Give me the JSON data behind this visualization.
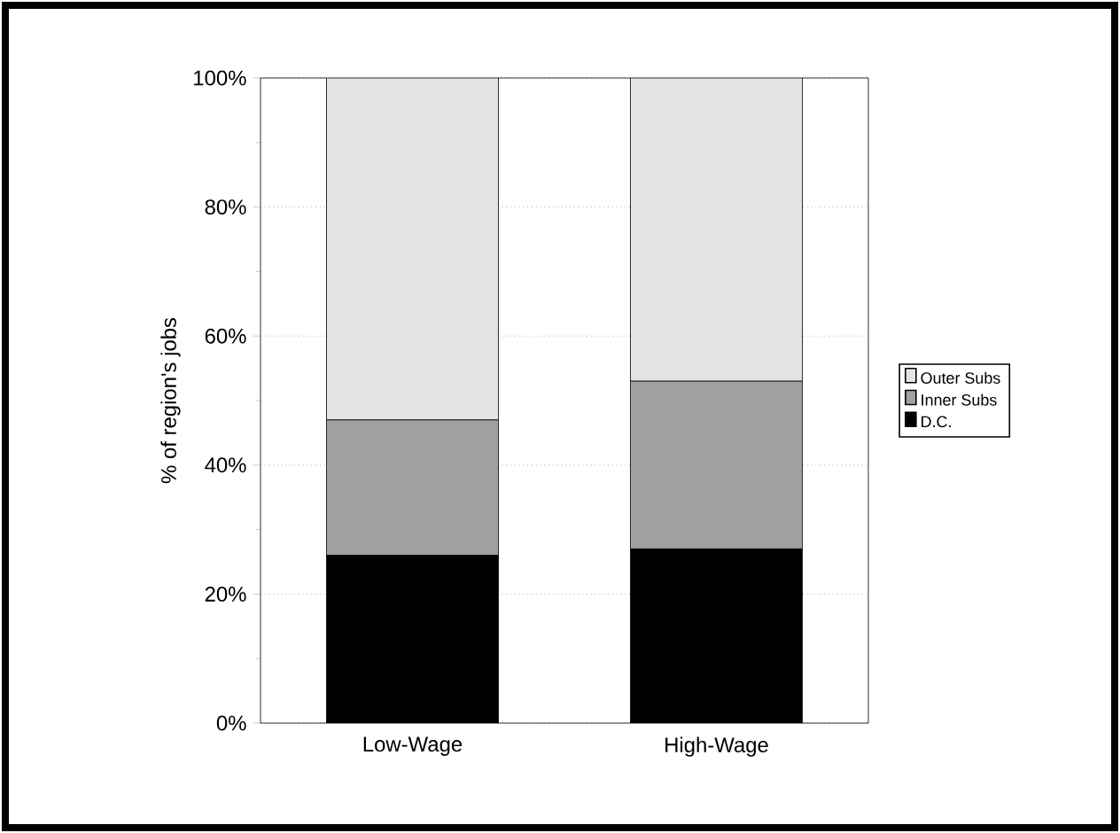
{
  "chart_data": {
    "type": "bar",
    "stacked": true,
    "ylabel": "% of region's jobs",
    "categories": [
      "Low-Wage",
      "High-Wage"
    ],
    "series": [
      {
        "name": "D.C.",
        "color": "#000000",
        "values": [
          26,
          27
        ]
      },
      {
        "name": "Inner Subs",
        "color": "#a0a0a0",
        "values": [
          21,
          26
        ]
      },
      {
        "name": "Outer Subs",
        "color": "#e4e4e4",
        "values": [
          53,
          47
        ]
      }
    ],
    "ylim": [
      0,
      100
    ],
    "yticks": [
      {
        "value": 0,
        "label": "0%"
      },
      {
        "value": 20,
        "label": "20%"
      },
      {
        "value": 40,
        "label": "40%"
      },
      {
        "value": 60,
        "label": "60%"
      },
      {
        "value": 80,
        "label": "80%"
      },
      {
        "value": 100,
        "label": "100%"
      }
    ],
    "grid": "y",
    "legend": "right"
  }
}
